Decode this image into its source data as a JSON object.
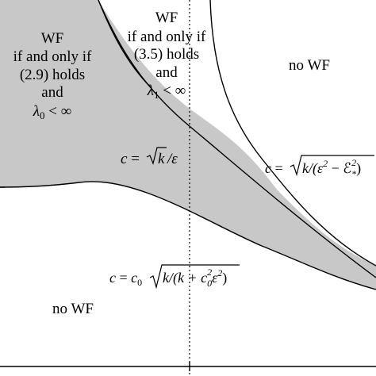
{
  "regions": {
    "left": {
      "line1": "WF",
      "line2": "if and only if",
      "line3": "(2.9) holds",
      "line4": "and",
      "lambda_sym": "λ",
      "lambda_sub": "0",
      "lambda_rest": " < ∞"
    },
    "middle": {
      "line1": "WF",
      "line2": "if and only if",
      "line3": "(3.5) holds",
      "line4": "and",
      "lambda_sym": "λ",
      "lambda_sub": "1",
      "lambda_rest": " < ∞"
    },
    "no_wf_upper": "no WF",
    "no_wf_lower": "no WF"
  },
  "curve_labels": {
    "middle_curve": {
      "c": "c",
      "eq": " = ",
      "radicand": "k",
      "tail": "/ε"
    },
    "upper_curve": {
      "c": "c",
      "eq": " = ",
      "radicand": "k/(ε",
      "sup": "2",
      "minus": " − ℰ",
      "sub": "*",
      "sup2": "2",
      "close": ")"
    },
    "lower_curve": {
      "c": "c",
      "eq": " = ",
      "c0": "c",
      "c0_sub": "0",
      "radicand": "k/(k + c",
      "r_sub": "0",
      "r_sup": "2",
      "r_eps": "ε",
      "r_sup2": "2",
      "close": ")"
    }
  },
  "colors": {
    "shaded_region": "#c8c8c8",
    "lines": "#000000",
    "background": "#ffffff"
  }
}
